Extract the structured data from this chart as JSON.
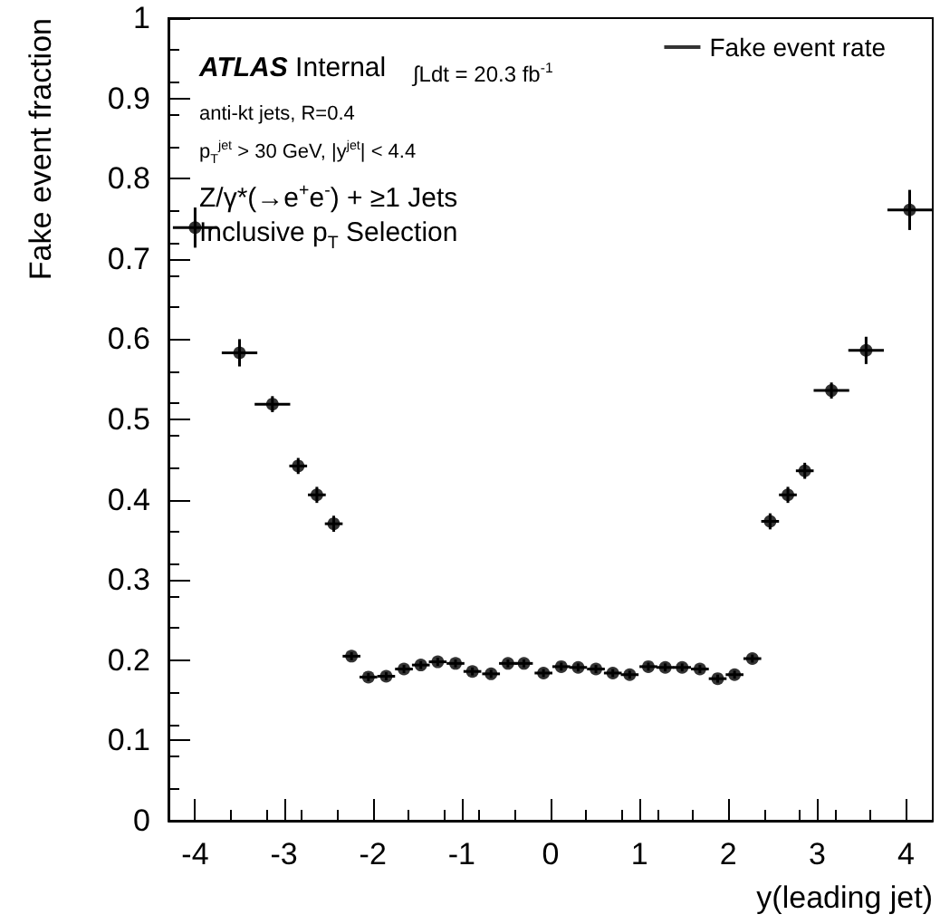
{
  "chart_data": {
    "type": "scatter",
    "xlabel": "y(leading jet)",
    "ylabel": "Fake event fraction",
    "annotations": [
      "ATLAS Internal",
      "anti-kt jets, R=0.4",
      "p$_{T}$$^{jet}$ > 30 GeV, |y$^{jet}$| < 4.4",
      "Z/γ*(→e$^{+}$e$^{-}$) + ≥1 Jets",
      "Inclusive p$_{T}$ Selection",
      "∫Ldt = 20.3 fb$^{-1}$"
    ],
    "series": [
      {
        "name": "Fake event rate",
        "color": "#000000",
        "x": [
          -4.0,
          -3.5,
          -3.13,
          -2.84,
          -2.63,
          -2.44,
          -2.24,
          -2.05,
          -1.85,
          -1.65,
          -1.46,
          -1.27,
          -1.07,
          -0.88,
          -0.67,
          -0.48,
          -0.3,
          -0.08,
          0.12,
          0.31,
          0.51,
          0.7,
          0.89,
          1.1,
          1.29,
          1.48,
          1.68,
          1.88,
          2.07,
          2.27,
          2.47,
          2.67,
          2.86,
          3.16,
          3.55,
          4.04
        ],
        "values": [
          0.739,
          0.583,
          0.519,
          0.442,
          0.406,
          0.37,
          0.205,
          0.179,
          0.18,
          0.189,
          0.194,
          0.198,
          0.196,
          0.186,
          0.183,
          0.196,
          0.196,
          0.184,
          0.192,
          0.191,
          0.189,
          0.184,
          0.182,
          0.192,
          0.191,
          0.191,
          0.189,
          0.177,
          0.182,
          0.202,
          0.373,
          0.406,
          0.436,
          0.536,
          0.586,
          0.761
        ],
        "errors": [
          0.025,
          0.017,
          0.01,
          0.01,
          0.01,
          0.01,
          0.005,
          0.005,
          0.005,
          0.005,
          0.005,
          0.005,
          0.005,
          0.005,
          0.005,
          0.005,
          0.005,
          0.005,
          0.005,
          0.005,
          0.005,
          0.005,
          0.005,
          0.005,
          0.005,
          0.005,
          0.005,
          0.005,
          0.005,
          0.005,
          0.01,
          0.01,
          0.01,
          0.01,
          0.017,
          0.025
        ],
        "xerrors": [
          0.25,
          0.2,
          0.2,
          0.1,
          0.1,
          0.1,
          0.1,
          0.1,
          0.1,
          0.1,
          0.1,
          0.1,
          0.1,
          0.1,
          0.1,
          0.1,
          0.1,
          0.1,
          0.1,
          0.1,
          0.1,
          0.1,
          0.1,
          0.1,
          0.1,
          0.1,
          0.1,
          0.1,
          0.1,
          0.1,
          0.1,
          0.1,
          0.1,
          0.2,
          0.2,
          0.25
        ]
      }
    ],
    "xlim": [
      -4.3,
      4.3
    ],
    "xticks": [
      -4,
      -3,
      -2,
      -1,
      0,
      1,
      2,
      3,
      4
    ],
    "ylim": [
      0,
      1
    ],
    "yticks": [
      0,
      0.1,
      0.2,
      0.3,
      0.4,
      0.5,
      0.6,
      0.7,
      0.8,
      0.9,
      1
    ],
    "grid": false,
    "legend": "top right",
    "marker": "circle"
  }
}
